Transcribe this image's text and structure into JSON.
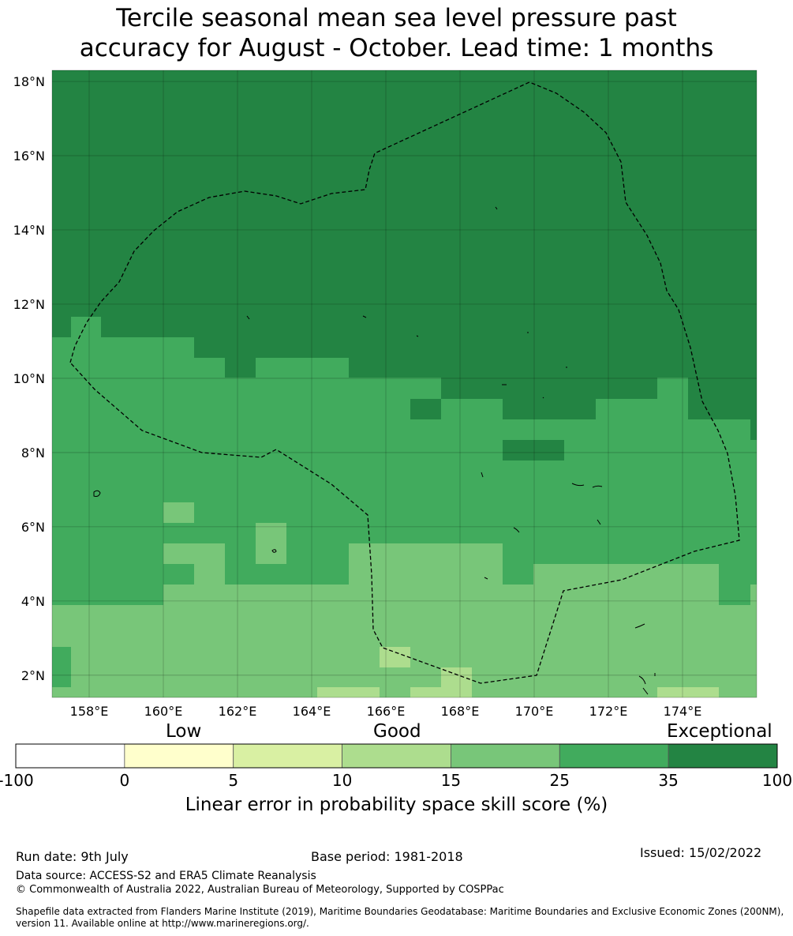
{
  "title": {
    "line1": "Tercile seasonal mean sea level pressure past",
    "line2": "accuracy for August - October. Lead time: 1 months"
  },
  "map": {
    "lon_range": [
      157.0,
      176.0
    ],
    "lat_range": [
      1.4,
      18.3
    ],
    "lon_ticks": [
      {
        "v": 158,
        "label": "158°E"
      },
      {
        "v": 160,
        "label": "160°E"
      },
      {
        "v": 162,
        "label": "162°E"
      },
      {
        "v": 164,
        "label": "164°E"
      },
      {
        "v": 166,
        "label": "166°E"
      },
      {
        "v": 168,
        "label": "168°E"
      },
      {
        "v": 170,
        "label": "170°E"
      },
      {
        "v": 172,
        "label": "172°E"
      },
      {
        "v": 174,
        "label": "174°E"
      }
    ],
    "lat_ticks": [
      {
        "v": 2,
        "label": "2°N"
      },
      {
        "v": 4,
        "label": "4°N"
      },
      {
        "v": 6,
        "label": "6°N"
      },
      {
        "v": 8,
        "label": "8°N"
      },
      {
        "v": 10,
        "label": "10°N"
      },
      {
        "v": 12,
        "label": "12°N"
      },
      {
        "v": 14,
        "label": "14°N"
      },
      {
        "v": 16,
        "label": "16°N"
      },
      {
        "v": 18,
        "label": "18°N"
      }
    ],
    "grid_lines": true,
    "boundary_style": "dashed",
    "skill_bands_base": "35-100",
    "cell_size_deg": [
      0.833,
      0.556
    ]
  },
  "colorbar": {
    "title": "Linear error in probability space skill score (%)",
    "category_labels": [
      "Low",
      "Good",
      "Exceptional"
    ],
    "ticks": [
      "-100",
      "0",
      "5",
      "10",
      "15",
      "25",
      "35",
      "100"
    ],
    "colors": [
      "#ffffff",
      "#ffffcc",
      "#d9f0a3",
      "#addd8e",
      "#78c679",
      "#41ab5d",
      "#238443"
    ],
    "band_colors": {
      "35-100": "#238443",
      "25-35": "#41ab5d",
      "15-25": "#78c679",
      "10-15": "#addd8e",
      "5-10": "#d9f0a3",
      "0-5": "#ffffcc",
      "-100-0": "#ffffff"
    }
  },
  "footer": {
    "run_date": "Run date: 9th July",
    "base_period": "Base period: 1981-2018",
    "issued": "Issued: 15/02/2022",
    "data_source": "Data source: ACCESS-S2 and ERA5 Climate Reanalysis",
    "copyright": "© Commonwealth of Australia 2022, Australian Bureau of Meteorology, Supported by COSPPac",
    "shapefile_line1": "Shapefile data extracted from Flanders Marine Institute (2019), Maritime Boundaries Geodatabase: Maritime Boundaries and Exclusive Economic Zones (200NM),",
    "shapefile_line2": "version 11. Available online at http://www.marineregions.org/."
  }
}
